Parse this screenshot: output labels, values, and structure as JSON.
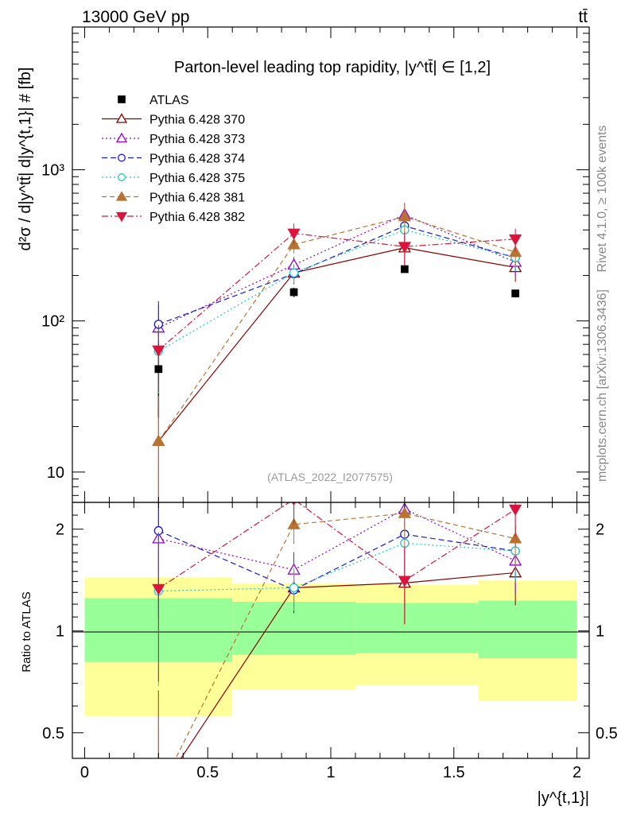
{
  "header": {
    "energy": "13000 GeV pp",
    "process": "tt̄"
  },
  "side_labels": {
    "rivet": "Rivet 4.1.0, ≥ 100k events",
    "mcplots": "mcplots.cern.ch [arXiv:1306.3436]"
  },
  "chart_data": {
    "type": "line",
    "title": "Parton-level leading top rapidity, |y^tt̄| ∈ [1,2]",
    "analysis_id": "(ATLAS_2022_I2077575)",
    "xlabel": "|y^{t,1}|",
    "ylabel": "d²σ / d|y^tt̄| d|y^{t,1}| # [fb]",
    "ratio_ylabel": "Ratio to ATLAS",
    "xlim": [
      -0.05,
      2.05
    ],
    "ylim": [
      6.3,
      8800
    ],
    "ratio_ylim": [
      0.42,
      2.4
    ],
    "x_ticks": [
      0,
      0.5,
      1,
      1.5,
      2
    ],
    "x_tick_labels": [
      "0",
      "0.5",
      "1",
      "1.5",
      "2"
    ],
    "y_ticks": [
      10,
      100,
      1000
    ],
    "y_tick_labels": [
      "10",
      "10²",
      "10³"
    ],
    "ratio_y_ticks": [
      0.5,
      1,
      2
    ],
    "ratio_y_tick_labels": [
      "0.5",
      "1",
      "2"
    ],
    "x": [
      0.3,
      0.85,
      1.3,
      1.75
    ],
    "bins": [
      [
        0,
        0.6
      ],
      [
        0.6,
        1.1
      ],
      [
        1.1,
        1.6
      ],
      [
        1.6,
        2.0
      ]
    ],
    "data": {
      "name": "ATLAS",
      "values": [
        48,
        155,
        220,
        152
      ],
      "errors": [
        25,
        11,
        12,
        9
      ]
    },
    "bands": {
      "inner": [
        [
          0.81,
          1.25
        ],
        [
          0.85,
          1.22
        ],
        [
          0.86,
          1.21
        ],
        [
          0.83,
          1.23
        ]
      ],
      "outer": [
        [
          0.56,
          1.44
        ],
        [
          0.67,
          1.38
        ],
        [
          0.69,
          1.37
        ],
        [
          0.62,
          1.41
        ]
      ]
    },
    "series": [
      {
        "name": "Pythia 6.428 370",
        "values": [
          16,
          208,
          305,
          226
        ],
        "errors": [
          16,
          28,
          75,
          45
        ],
        "color": "#8b0000",
        "marker": "triangle-up-open",
        "dash": ""
      },
      {
        "name": "Pythia 6.428 373",
        "values": [
          90,
          235,
          505,
          245
        ],
        "errors": [
          38,
          30,
          100,
          48
        ],
        "color": "#9400d3",
        "marker": "triangle-up-open",
        "dash": "2,3"
      },
      {
        "name": "Pythia 6.428 374",
        "values": [
          95,
          205,
          425,
          262
        ],
        "errors": [
          40,
          30,
          95,
          50
        ],
        "color": "#1a1adc",
        "marker": "circle-open",
        "dash": "7,4"
      },
      {
        "name": "Pythia 6.428 375",
        "values": [
          63,
          208,
          400,
          262
        ],
        "errors": [
          30,
          30,
          90,
          50
        ],
        "color": "#20c9c9",
        "marker": "circle-open",
        "dash": "2,3"
      },
      {
        "name": "Pythia 6.428 381",
        "values": [
          16,
          320,
          490,
          285
        ],
        "errors": [
          16,
          40,
          110,
          55
        ],
        "color": "#b87333",
        "marker": "triangle-up-filled",
        "dash": "6,4"
      },
      {
        "name": "Pythia 6.428 382",
        "values": [
          64,
          380,
          310,
          348
        ],
        "errors": [
          30,
          60,
          80,
          60
        ],
        "color": "#dc143c",
        "marker": "triangle-down-filled",
        "dash": "8,3,2,3"
      }
    ]
  }
}
